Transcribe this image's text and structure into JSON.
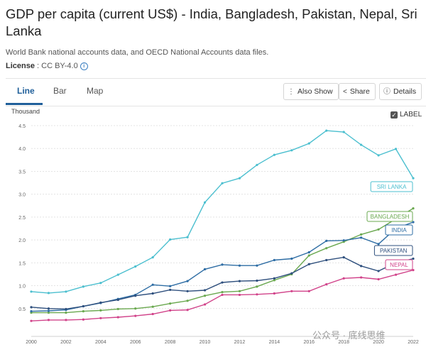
{
  "header": {
    "title": "GDP per capita (current US$) - India, Bangladesh, Pakistan, Nepal, Sri Lanka",
    "source": "World Bank national accounts data, and OECD National Accounts data files.",
    "license_label": "License",
    "license_value": "CC BY-4.0",
    "info_icon": "info-icon"
  },
  "tabs": [
    {
      "label": "Line",
      "active": true
    },
    {
      "label": "Bar",
      "active": false
    },
    {
      "label": "Map",
      "active": false
    }
  ],
  "actions": {
    "also_show": "Also Show",
    "share": "Share",
    "details": "Details"
  },
  "label_toggle": {
    "label": "LABEL",
    "checked": true
  },
  "watermark": "公众号 · 底线思维",
  "chart_data": {
    "type": "line",
    "title": "GDP per capita (current US$)",
    "ylabel": "Thousand",
    "xlabel": "",
    "ylim": [
      0,
      4.5
    ],
    "xlim": [
      2000,
      2022
    ],
    "yticks": [
      "0.5",
      "1.0",
      "1.5",
      "2.0",
      "2.5",
      "3.0",
      "3.5",
      "4.0",
      "4.5"
    ],
    "xticks": [
      "2000",
      "2002",
      "2004",
      "2006",
      "2008",
      "2010",
      "2012",
      "2014",
      "2016",
      "2018",
      "2020",
      "2022"
    ],
    "grid": true,
    "x": [
      2000,
      2001,
      2002,
      2003,
      2004,
      2005,
      2006,
      2007,
      2008,
      2009,
      2010,
      2011,
      2012,
      2013,
      2014,
      2015,
      2016,
      2017,
      2018,
      2019,
      2020,
      2021,
      2022
    ],
    "series": [
      {
        "name": "SRI LANKA",
        "color": "#4bbfcf",
        "values": [
          0.87,
          0.84,
          0.87,
          0.98,
          1.06,
          1.24,
          1.42,
          1.62,
          2.01,
          2.06,
          2.82,
          3.24,
          3.35,
          3.64,
          3.86,
          3.96,
          4.11,
          4.39,
          4.36,
          4.08,
          3.85,
          3.99,
          3.35
        ]
      },
      {
        "name": "BANGLADESH",
        "color": "#6aa84f",
        "values": [
          0.41,
          0.41,
          0.41,
          0.44,
          0.46,
          0.49,
          0.5,
          0.54,
          0.61,
          0.67,
          0.78,
          0.86,
          0.88,
          0.98,
          1.12,
          1.25,
          1.66,
          1.82,
          1.96,
          2.12,
          2.23,
          2.46,
          2.69
        ]
      },
      {
        "name": "INDIA",
        "color": "#2e6da4",
        "values": [
          0.44,
          0.45,
          0.47,
          0.55,
          0.62,
          0.71,
          0.8,
          1.02,
          0.99,
          1.1,
          1.36,
          1.46,
          1.44,
          1.44,
          1.56,
          1.59,
          1.73,
          1.98,
          1.99,
          2.05,
          1.91,
          2.25,
          2.39
        ]
      },
      {
        "name": "PAKISTAN",
        "color": "#2e4f7d",
        "values": [
          0.53,
          0.5,
          0.49,
          0.55,
          0.63,
          0.69,
          0.78,
          0.83,
          0.91,
          0.88,
          0.9,
          1.07,
          1.1,
          1.11,
          1.16,
          1.27,
          1.47,
          1.56,
          1.62,
          1.43,
          1.32,
          1.5,
          1.59
        ]
      },
      {
        "name": "NEPAL",
        "color": "#d1438a",
        "values": [
          0.23,
          0.25,
          0.25,
          0.26,
          0.29,
          0.31,
          0.34,
          0.38,
          0.46,
          0.47,
          0.59,
          0.8,
          0.8,
          0.81,
          0.83,
          0.88,
          0.88,
          1.03,
          1.16,
          1.18,
          1.14,
          1.24,
          1.34
        ]
      }
    ],
    "labels": [
      "SRI LANKA",
      "BANGLADESH",
      "INDIA",
      "PAKISTAN",
      "NEPAL"
    ]
  }
}
